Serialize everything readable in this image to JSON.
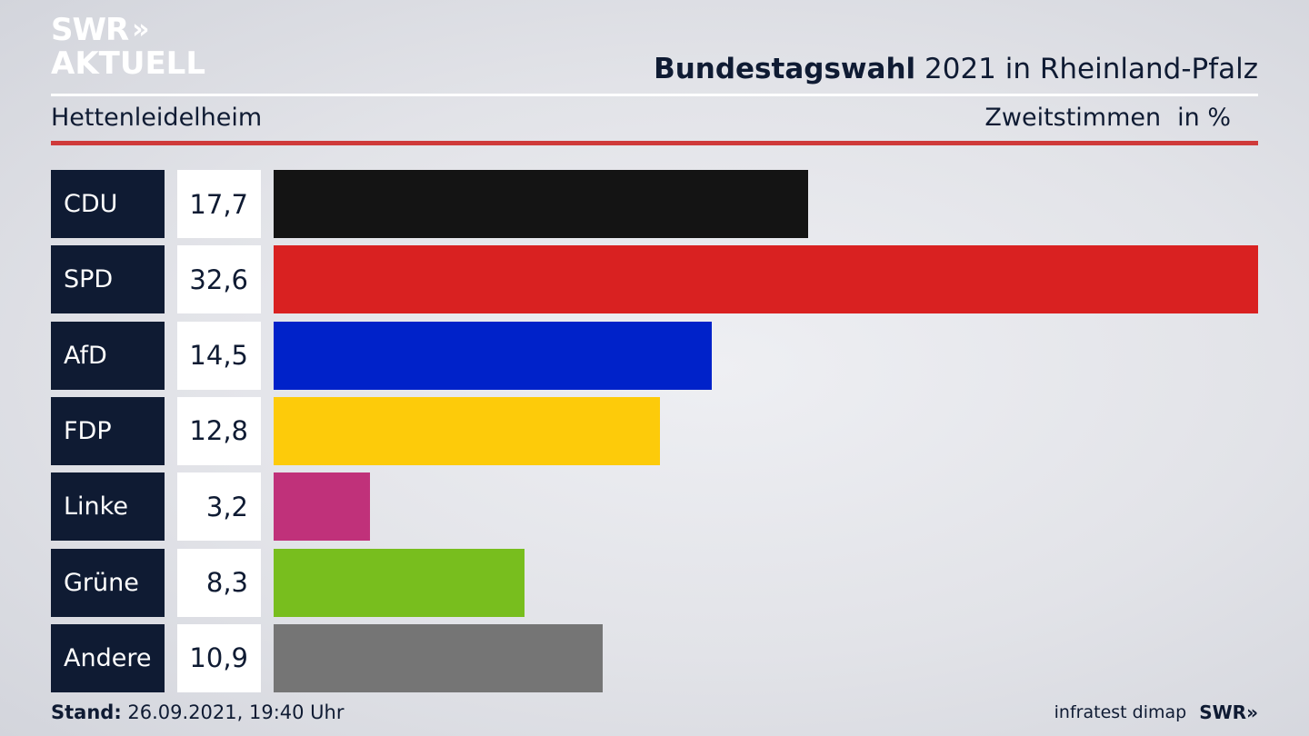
{
  "logo": {
    "line1": "SWR",
    "chevrons": "»",
    "line2": "AKTUELL"
  },
  "header": {
    "title_bold": "Bundestagswahl",
    "title_rest": " 2021 in Rheinland-Pfalz",
    "region": "Hettenleidelheim",
    "measure": "Zweitstimmen",
    "unit": "in %"
  },
  "footer": {
    "stand_label": "Stand:",
    "stand_value": " 26.09.2021, 19:40 Uhr",
    "source": "infratest dimap",
    "source_logo": "SWR»"
  },
  "chart_data": {
    "type": "bar",
    "orientation": "horizontal",
    "categories": [
      "CDU",
      "SPD",
      "AfD",
      "FDP",
      "Linke",
      "Grüne",
      "Andere"
    ],
    "values": [
      17.7,
      32.6,
      14.5,
      12.8,
      3.2,
      8.3,
      10.9
    ],
    "value_labels": [
      "17,7",
      "32,6",
      "14,5",
      "12,8",
      "3,2",
      "8,3",
      "10,9"
    ],
    "colors": [
      "#141414",
      "#d92121",
      "#0022c9",
      "#fdcb0a",
      "#c0317a",
      "#78be1e",
      "#757575"
    ],
    "xlim": [
      0,
      32.6
    ],
    "grid": false,
    "legend": "none"
  }
}
